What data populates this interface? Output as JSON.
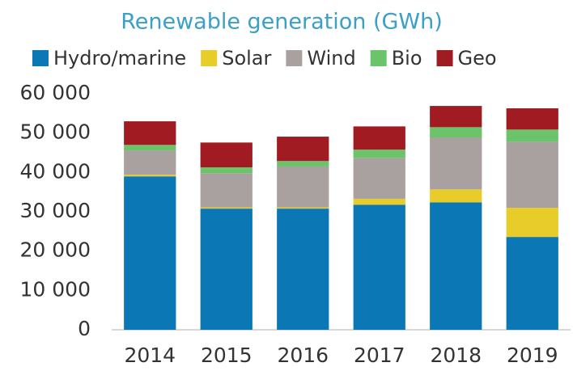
{
  "chart_data": {
    "type": "stacked_bar",
    "title": "Renewable generation (GWh)",
    "categories": [
      "2014",
      "2015",
      "2016",
      "2017",
      "2018",
      "2019"
    ],
    "series": [
      {
        "name": "Hydro/marine",
        "color": "#0b77b4",
        "values": [
          39000,
          30800,
          30800,
          31800,
          32400,
          23600
        ]
      },
      {
        "name": "Solar",
        "color": "#e8cc2a",
        "values": [
          400,
          300,
          300,
          1500,
          3300,
          7400
        ]
      },
      {
        "name": "Wind",
        "color": "#a9a0a0",
        "values": [
          6200,
          8700,
          10400,
          10400,
          13200,
          16800
        ]
      },
      {
        "name": "Bio",
        "color": "#6cc46a",
        "values": [
          1400,
          1500,
          1400,
          2100,
          2600,
          3100
        ]
      },
      {
        "name": "Geo",
        "color": "#a01b22",
        "values": [
          6000,
          6300,
          6200,
          5900,
          5400,
          5400
        ]
      }
    ],
    "ylim": [
      0,
      60000
    ],
    "yticks": [
      0,
      {
        "value": 10000,
        "label": "10 000"
      },
      {
        "value": 20000,
        "label": "20 000"
      },
      {
        "value": 30000,
        "label": "30 000"
      },
      {
        "value": 40000,
        "label": "40 000"
      },
      {
        "value": 50000,
        "label": "50 000"
      },
      {
        "value": 60000,
        "label": "60 000"
      }
    ],
    "grid": false
  }
}
